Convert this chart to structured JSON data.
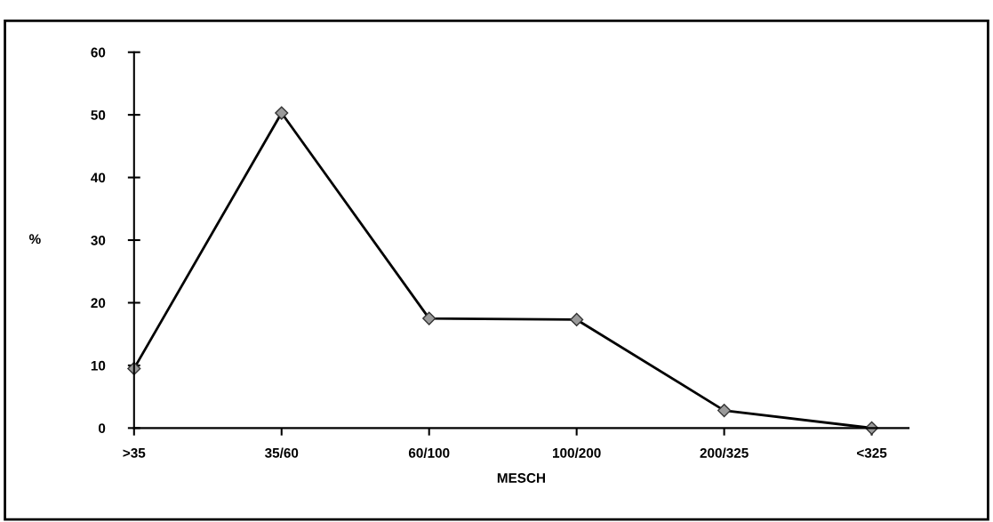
{
  "chart_data": {
    "type": "line",
    "xlabel": "MESCH",
    "ylabel": "%",
    "categories": [
      ">35",
      "35/60",
      "60/100",
      "100/200",
      "200/325",
      "<325"
    ],
    "series": [
      {
        "color": "#000000",
        "values": [
          9.5,
          50.3,
          17.5,
          17.3,
          2.8,
          0
        ]
      }
    ],
    "ylim": [
      0,
      60
    ],
    "yticks": [
      0,
      10,
      20,
      30,
      40,
      50,
      60
    ],
    "marker": "diamond",
    "line_style": "solid",
    "grid": false,
    "legend": false
  }
}
